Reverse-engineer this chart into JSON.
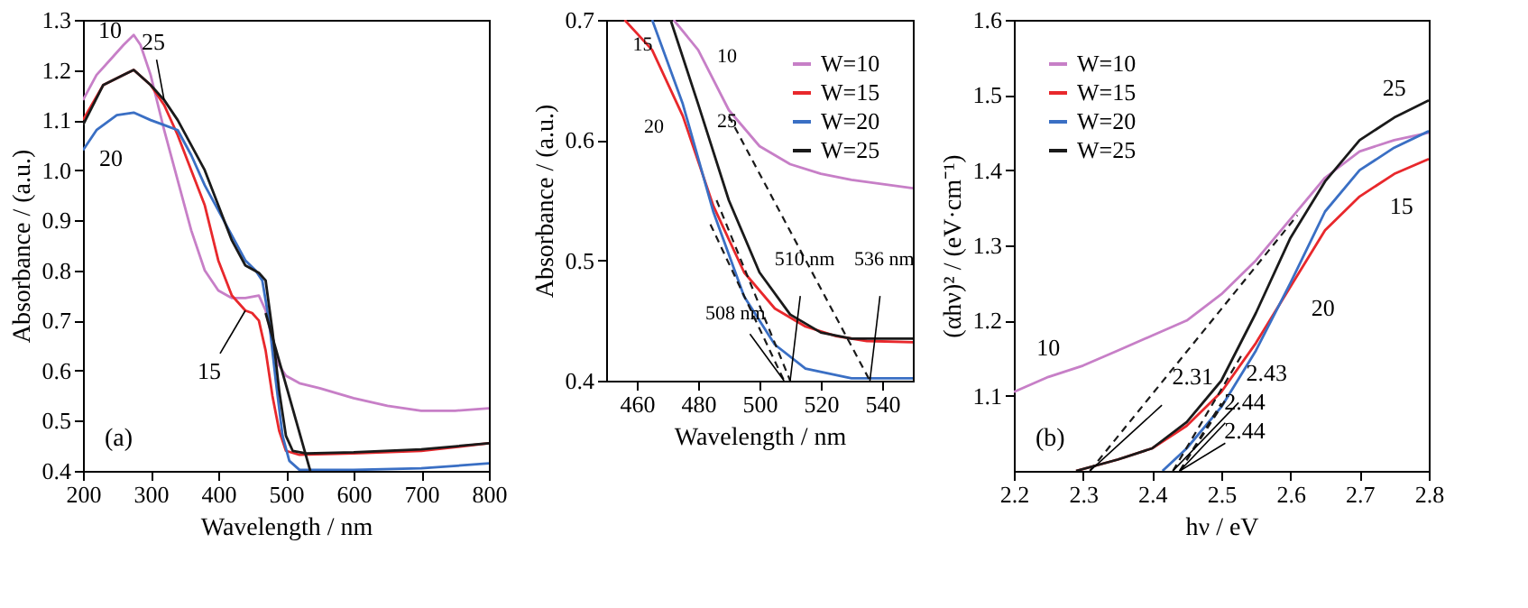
{
  "chart_data": [
    {
      "type": "line",
      "xlabel": "Wavelength / nm",
      "ylabel": "Absorbance / (a.u.)",
      "xlim": [
        200,
        800
      ],
      "ylim": [
        0.4,
        1.3
      ],
      "xticks": [
        200,
        300,
        400,
        500,
        600,
        700,
        800
      ],
      "yticks": [
        0.4,
        0.5,
        0.6,
        0.7,
        0.8,
        0.9,
        {
          "value": 1.0,
          "label": "1.0"
        },
        1.1,
        1.2,
        1.3
      ],
      "legend": false,
      "grid": false,
      "line_style": "solid",
      "series": [
        {
          "color": "#c77fc7",
          "x": [
            200,
            220,
            240,
            260,
            275,
            285,
            300,
            320,
            340,
            360,
            380,
            400,
            420,
            440,
            460,
            470,
            480,
            490,
            500,
            520,
            550,
            600,
            650,
            700,
            750,
            800
          ],
          "values": [
            1.14,
            1.19,
            1.22,
            1.25,
            1.27,
            1.25,
            1.19,
            1.08,
            0.98,
            0.88,
            0.8,
            0.76,
            0.745,
            0.745,
            0.75,
            0.72,
            0.66,
            0.61,
            0.59,
            0.575,
            0.565,
            0.545,
            0.53,
            0.52,
            0.52,
            0.525
          ]
        },
        {
          "color": "#e8282c",
          "x": [
            200,
            230,
            260,
            275,
            300,
            320,
            340,
            360,
            380,
            400,
            420,
            440,
            450,
            460,
            470,
            480,
            490,
            500,
            520,
            600,
            700,
            800
          ],
          "values": [
            1.1,
            1.17,
            1.19,
            1.2,
            1.17,
            1.13,
            1.07,
            1.0,
            0.93,
            0.82,
            0.75,
            0.72,
            0.715,
            0.7,
            0.64,
            0.55,
            0.48,
            0.44,
            0.432,
            0.435,
            0.44,
            0.455
          ]
        },
        {
          "color": "#3a6fc4",
          "x": [
            200,
            220,
            250,
            275,
            300,
            320,
            340,
            360,
            380,
            400,
            420,
            440,
            455,
            465,
            475,
            485,
            495,
            505,
            520,
            600,
            700,
            800
          ],
          "values": [
            1.04,
            1.08,
            1.11,
            1.115,
            1.1,
            1.09,
            1.08,
            1.03,
            0.97,
            0.92,
            0.87,
            0.82,
            0.8,
            0.78,
            0.7,
            0.58,
            0.47,
            0.42,
            0.402,
            0.402,
            0.405,
            0.415
          ]
        },
        {
          "color": "#1a1a1a",
          "x": [
            200,
            230,
            260,
            275,
            300,
            320,
            340,
            360,
            380,
            400,
            420,
            440,
            460,
            470,
            480,
            490,
            500,
            510,
            530,
            600,
            700,
            800
          ],
          "values": [
            1.09,
            1.17,
            1.19,
            1.2,
            1.17,
            1.14,
            1.1,
            1.05,
            1.0,
            0.93,
            0.86,
            0.81,
            0.795,
            0.78,
            0.68,
            0.56,
            0.47,
            0.44,
            0.435,
            0.437,
            0.443,
            0.455
          ]
        },
        {
          "color": "#1a1a1a",
          "line_style": "solid",
          "x": [
            470,
            536
          ],
          "values": [
            0.715,
            0.4
          ]
        }
      ],
      "annotations": [
        {
          "text": "10",
          "x": 240,
          "y": 1.22
        },
        {
          "text": "25",
          "x": 320,
          "y": 1.14
        },
        {
          "text": "20",
          "x": 220,
          "y": 1.08
        },
        {
          "text": "15",
          "x": 440,
          "y": 0.72
        },
        "(a)"
      ]
    },
    {
      "type": "line",
      "xlabel": "Wavelength / nm",
      "ylabel": "Absorbance / (a.u.)",
      "xlim": [
        450,
        550
      ],
      "ylim": [
        0.4,
        0.7
      ],
      "xticks": [
        460,
        480,
        500,
        520,
        540
      ],
      "yticks": [
        0.4,
        0.5,
        0.6,
        0.7
      ],
      "legend": "top right",
      "grid": false,
      "line_style": "solid",
      "series": [
        {
          "name": "W=10",
          "color": "#c77fc7",
          "x": [
            472,
            480,
            490,
            500,
            510,
            520,
            530,
            550
          ],
          "values": [
            0.7,
            0.675,
            0.625,
            0.595,
            0.58,
            0.572,
            0.567,
            0.56
          ]
        },
        {
          "name": "W=15",
          "color": "#e8282c",
          "x": [
            456,
            465,
            475,
            485,
            495,
            505,
            515,
            525,
            535,
            550
          ],
          "values": [
            0.7,
            0.675,
            0.62,
            0.545,
            0.49,
            0.46,
            0.445,
            0.437,
            0.433,
            0.432
          ]
        },
        {
          "name": "W=20",
          "color": "#3a6fc4",
          "x": [
            465,
            475,
            485,
            495,
            505,
            515,
            530,
            550
          ],
          "values": [
            0.7,
            0.63,
            0.54,
            0.47,
            0.43,
            0.41,
            0.402,
            0.402
          ]
        },
        {
          "name": "W=25",
          "color": "#1a1a1a",
          "x": [
            471,
            480,
            490,
            500,
            510,
            520,
            530,
            550
          ],
          "values": [
            0.7,
            0.63,
            0.55,
            0.49,
            0.455,
            0.44,
            0.435,
            0.435
          ]
        },
        {
          "color": "#1a1a1a",
          "line_style": "dashed",
          "x": [
            490,
            536
          ],
          "values": [
            0.62,
            0.4
          ]
        },
        {
          "color": "#1a1a1a",
          "line_style": "dashed",
          "x": [
            486,
            510
          ],
          "values": [
            0.55,
            0.4
          ]
        },
        {
          "color": "#1a1a1a",
          "line_style": "dashed",
          "x": [
            484,
            508
          ],
          "values": [
            0.53,
            0.4
          ]
        }
      ],
      "annotations": [
        {
          "text": "15",
          "x": 456,
          "y": 0.7
        },
        {
          "text": "20",
          "x": 475,
          "y": 0.62
        },
        {
          "text": "10",
          "x": 480,
          "y": 0.675
        },
        {
          "text": "25",
          "x": 480,
          "y": 0.63
        },
        {
          "text": "508 nm",
          "x": 508,
          "y": 0.4
        },
        {
          "text": "510 nm",
          "x": 510,
          "y": 0.4
        },
        {
          "text": "536 nm",
          "x": 536,
          "y": 0.4
        }
      ]
    },
    {
      "type": "line",
      "xlabel": "hν / eV",
      "ylabel": "(αhν)² / (eV·cm⁻¹)",
      "xlim": [
        2.2,
        2.8
      ],
      "ylim": [
        1.0,
        1.6
      ],
      "xticks": [
        2.2,
        2.3,
        2.4,
        2.5,
        2.6,
        2.7,
        2.8
      ],
      "yticks": [
        1.1,
        1.2,
        1.3,
        1.4,
        1.5,
        1.6
      ],
      "legend": "top left",
      "grid": false,
      "line_style": "solid",
      "series": [
        {
          "name": "W=10",
          "color": "#c77fc7",
          "x": [
            2.2,
            2.25,
            2.3,
            2.35,
            2.4,
            2.45,
            2.5,
            2.55,
            2.6,
            2.65,
            2.7,
            2.75,
            2.8
          ],
          "values": [
            1.105,
            1.125,
            1.14,
            1.16,
            1.18,
            1.2,
            1.235,
            1.28,
            1.335,
            1.39,
            1.425,
            1.44,
            1.45
          ]
        },
        {
          "name": "W=15",
          "color": "#e8282c",
          "x": [
            2.29,
            2.35,
            2.4,
            2.45,
            2.5,
            2.55,
            2.6,
            2.65,
            2.7,
            2.75,
            2.8
          ],
          "values": [
            1.0,
            1.015,
            1.03,
            1.06,
            1.105,
            1.17,
            1.245,
            1.32,
            1.365,
            1.395,
            1.415
          ]
        },
        {
          "name": "W=20",
          "color": "#3a6fc4",
          "x": [
            2.415,
            2.45,
            2.5,
            2.55,
            2.6,
            2.65,
            2.7,
            2.75,
            2.8
          ],
          "values": [
            1.0,
            1.03,
            1.085,
            1.16,
            1.25,
            1.345,
            1.4,
            1.43,
            1.452
          ]
        },
        {
          "name": "W=25",
          "color": "#1a1a1a",
          "x": [
            2.29,
            2.35,
            2.4,
            2.45,
            2.5,
            2.55,
            2.6,
            2.65,
            2.7,
            2.75,
            2.8
          ],
          "values": [
            1.0,
            1.015,
            1.03,
            1.065,
            1.12,
            1.21,
            1.31,
            1.385,
            1.44,
            1.47,
            1.493
          ]
        },
        {
          "color": "#1a1a1a",
          "line_style": "dashed",
          "x": [
            2.31,
            2.61
          ],
          "values": [
            1.0,
            1.34
          ]
        },
        {
          "color": "#1a1a1a",
          "line_style": "dashed",
          "x": [
            2.43,
            2.53
          ],
          "values": [
            1.0,
            1.155
          ]
        },
        {
          "color": "#1a1a1a",
          "line_style": "dashed",
          "x": [
            2.44,
            2.5
          ],
          "values": [
            1.0,
            1.09
          ]
        },
        {
          "color": "#1a1a1a",
          "line_style": "dashed",
          "x": [
            2.44,
            2.51
          ],
          "values": [
            1.0,
            1.1
          ]
        }
      ],
      "annotations": [
        {
          "text": "2.31",
          "x": 2.31,
          "y": 1.0
        },
        {
          "text": "2.43",
          "x": 2.43,
          "y": 1.0
        },
        {
          "text": "2.44",
          "x": 2.44,
          "y": 1.0
        },
        {
          "text": "2.44",
          "x": 2.44,
          "y": 1.0
        },
        {
          "text": "10",
          "x": 2.25,
          "y": 1.125
        },
        {
          "text": "15",
          "x": 2.75,
          "y": 1.395
        },
        {
          "text": "20",
          "x": 2.6,
          "y": 1.25
        },
        {
          "text": "25",
          "x": 2.75,
          "y": 1.47
        },
        "(b)"
      ]
    }
  ]
}
